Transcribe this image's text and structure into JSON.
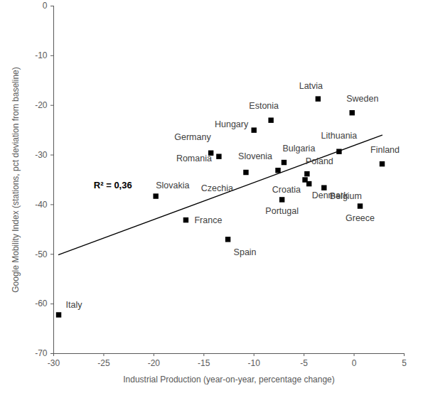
{
  "chart_data": {
    "type": "scatter",
    "x_label": "Industrial Production (year-on-year, percentage change)",
    "y_label": "Google Mobility Index (stations, pct deviation from baseline)",
    "labels": [
      "Italy",
      "Slovakia",
      "France",
      "Germany",
      "Romania",
      "Spain",
      "Czechia",
      "Hungary",
      "Estonia",
      "Slovenia",
      "Bulgaria",
      "Portugal",
      "Croatia",
      "Poland",
      "Denmark",
      "Latvia",
      "Belgium",
      "Lithuania",
      "Sweden",
      "Greece",
      "Finland"
    ],
    "x": [
      -29.5,
      -19.8,
      -16.8,
      -14.3,
      -13.5,
      -12.6,
      -10.8,
      -10.0,
      -8.3,
      -7.6,
      -7.0,
      -7.2,
      -4.9,
      -4.7,
      -4.5,
      -3.6,
      -3.0,
      -1.5,
      -0.2,
      0.6,
      2.8
    ],
    "values": [
      -62.2,
      -38.3,
      -43.1,
      -29.6,
      -30.3,
      -47.0,
      -33.5,
      -25.0,
      -23.0,
      -33.1,
      -31.5,
      -39.0,
      -35.0,
      -33.8,
      -35.8,
      -18.7,
      -36.6,
      -29.3,
      -21.5,
      -40.3,
      -31.8
    ],
    "trendline": {
      "x": [
        -29.5,
        2.8
      ],
      "y": [
        -50.1,
        -26.0
      ]
    },
    "annotation": {
      "text": "R² = 0,36",
      "x": -26.0,
      "y": -36.1
    },
    "marker": "square",
    "color": "#000000",
    "xlim": [
      -30,
      5
    ],
    "xticks": [
      -30,
      -25,
      -20,
      -15,
      -10,
      -5,
      0,
      5
    ],
    "ylim": [
      -70,
      0
    ],
    "yticks": [
      -70,
      -60,
      -50,
      -40,
      -30,
      -20,
      -10,
      0
    ],
    "grid": false
  }
}
